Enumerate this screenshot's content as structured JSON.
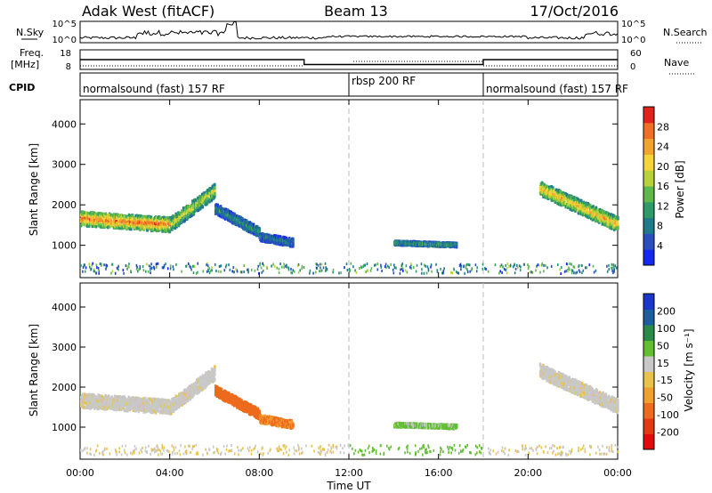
{
  "header": {
    "station": "Adak West (fitACF)",
    "beam": "Beam 13",
    "date": "17/Oct/2016"
  },
  "side_labels": {
    "nsky": "N.Sky",
    "freq_line1": "Freq.",
    "freq_line2": "[MHz]",
    "cpid": "CPID",
    "nsearch": "N.Search",
    "nave": "Nave"
  },
  "top_strip": {
    "left_ticks": [
      "10^5",
      "10^0"
    ],
    "right_ticks": [
      "10^5",
      "10^0"
    ]
  },
  "freq_strip": {
    "left_ticks": [
      "18",
      "8"
    ],
    "right_ticks": [
      "60",
      "0"
    ],
    "segments": [
      {
        "start_hour": 0,
        "end_hour": 10,
        "freq_mhz": 13
      },
      {
        "start_hour": 10,
        "end_hour": 18,
        "freq_mhz": 10.5
      },
      {
        "start_hour": 18,
        "end_hour": 24,
        "freq_mhz": 13
      }
    ]
  },
  "cpid": {
    "segments": [
      {
        "label": "normalsound (fast) 157 RF",
        "start_hour": 0
      },
      {
        "label": "rbsp 200 RF",
        "start_hour": 12
      },
      {
        "label": "normalsound (fast) 157 RF",
        "start_hour": 18
      }
    ],
    "dividers_hour": [
      12,
      18
    ]
  },
  "panels": {
    "y_label": "Slant Range [km]",
    "y_ticks": [
      1000,
      2000,
      3000,
      4000
    ]
  },
  "x_axis": {
    "label": "Time UT",
    "ticks": [
      "00:00",
      "04:00",
      "08:00",
      "12:00",
      "16:00",
      "20:00",
      "00:00"
    ]
  },
  "power_bar": {
    "label": "Power [dB]",
    "ticks": [
      "4",
      "8",
      "12",
      "16",
      "20",
      "24",
      "28"
    ],
    "colors": [
      "#1428f0",
      "#2a4fc0",
      "#1f7a8c",
      "#2e9a68",
      "#5fb84a",
      "#b9d13a",
      "#f4d43a",
      "#f2a52e",
      "#ef6f24",
      "#e0241c"
    ]
  },
  "velocity_bar": {
    "label": "Velocity [m s⁻¹]",
    "ticks": [
      "200",
      "100",
      "50",
      "15",
      "-15",
      "-50",
      "-100",
      "-200"
    ],
    "colors": [
      "#1a37c9",
      "#1c5d9e",
      "#2a8a4a",
      "#5fbf2e",
      "#c8c8c8",
      "#e8c24a",
      "#f0a030",
      "#ee6a1c",
      "#e33a14",
      "#e20a0a"
    ],
    "ground_scatter_color": "#c8c8c8"
  },
  "chart_data": [
    {
      "type": "heatmap",
      "xlabel": "Time UT",
      "ylabel": "Slant Range [km]",
      "xlim": [
        0,
        24
      ],
      "ylim": [
        200,
        4600
      ],
      "colorbar": "Power [dB]",
      "features": [
        {
          "start_hour": 0.0,
          "end_hour": 4.0,
          "range_km_start": 1650,
          "range_km_end": 1500,
          "width_km": 350,
          "power_db": 26
        },
        {
          "start_hour": 4.0,
          "end_hour": 6.0,
          "range_km_start": 1500,
          "range_km_end": 2350,
          "width_km": 350,
          "power_db": 18
        },
        {
          "start_hour": 6.0,
          "end_hour": 8.0,
          "range_km_start": 1900,
          "range_km_end": 1300,
          "width_km": 250,
          "power_db": 10
        },
        {
          "start_hour": 8.0,
          "end_hour": 9.5,
          "range_km_start": 1200,
          "range_km_end": 1050,
          "width_km": 200,
          "power_db": 8
        },
        {
          "start_hour": 14.0,
          "end_hour": 16.8,
          "range_km_start": 1050,
          "range_km_end": 1000,
          "width_km": 100,
          "power_db": 12
        },
        {
          "start_hour": 20.5,
          "end_hour": 24.0,
          "range_km_start": 2400,
          "range_km_end": 1500,
          "width_km": 350,
          "power_db": 22
        }
      ]
    },
    {
      "type": "heatmap",
      "xlabel": "Time UT",
      "ylabel": "Slant Range [km]",
      "xlim": [
        0,
        24
      ],
      "ylim": [
        200,
        4600
      ],
      "colorbar": "Velocity [m s⁻¹]",
      "features": [
        {
          "start_hour": 0.0,
          "end_hour": 4.0,
          "range_km_start": 1650,
          "range_km_end": 1500,
          "width_km": 350,
          "velocity_ms": 0
        },
        {
          "start_hour": 4.0,
          "end_hour": 6.0,
          "range_km_start": 1500,
          "range_km_end": 2350,
          "width_km": 350,
          "velocity_ms": 0
        },
        {
          "start_hour": 6.0,
          "end_hour": 8.0,
          "range_km_start": 1900,
          "range_km_end": 1300,
          "width_km": 250,
          "velocity_ms": -120
        },
        {
          "start_hour": 8.0,
          "end_hour": 9.5,
          "range_km_start": 1200,
          "range_km_end": 1050,
          "width_km": 200,
          "velocity_ms": -100
        },
        {
          "start_hour": 14.0,
          "end_hour": 16.8,
          "range_km_start": 1050,
          "range_km_end": 1000,
          "width_km": 100,
          "velocity_ms": 40
        },
        {
          "start_hour": 20.5,
          "end_hour": 24.0,
          "range_km_start": 2400,
          "range_km_end": 1500,
          "width_km": 350,
          "velocity_ms": 0
        }
      ]
    }
  ]
}
